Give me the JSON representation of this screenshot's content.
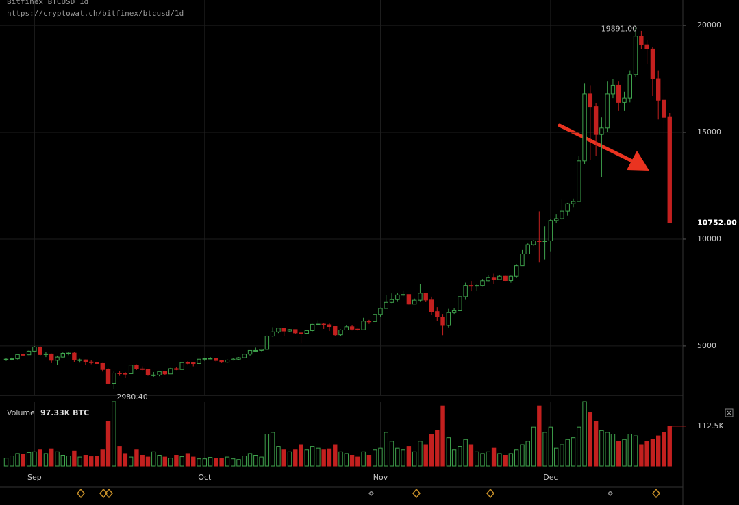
{
  "chart_data": [
    {
      "type": "candlestick",
      "title": "Bitfinex BTCUSD 1d",
      "subtitle": "https://cryptowat.ch/bitfinex/btcusd/1d",
      "categories": [
        null,
        null,
        null,
        null,
        null,
        "Sep",
        null,
        null,
        null,
        null,
        null,
        null,
        null,
        null,
        null,
        null,
        null,
        null,
        null,
        null,
        null,
        null,
        null,
        null,
        null,
        null,
        null,
        null,
        null,
        null,
        null,
        null,
        null,
        null,
        null,
        "Oct",
        null,
        null,
        null,
        null,
        null,
        null,
        null,
        null,
        null,
        null,
        null,
        null,
        null,
        null,
        null,
        null,
        null,
        null,
        null,
        null,
        null,
        null,
        null,
        null,
        null,
        null,
        null,
        null,
        null,
        null,
        "Nov",
        null,
        null,
        null,
        null,
        null,
        null,
        null,
        null,
        null,
        null,
        null,
        null,
        null,
        null,
        null,
        null,
        null,
        null,
        null,
        null,
        null,
        null,
        null,
        null,
        null,
        null,
        null,
        null,
        null,
        "Dec",
        null,
        null,
        null,
        null,
        null,
        null,
        null,
        null,
        null,
        null,
        null,
        null,
        null,
        null,
        null,
        null,
        null,
        null,
        null,
        null,
        null
      ],
      "open": [
        4350,
        4380,
        4400,
        4600,
        4590,
        4760,
        4950,
        4600,
        4630,
        4330,
        4480,
        4660,
        4670,
        4340,
        4350,
        4250,
        4230,
        4180,
        3900,
        3250,
        3730,
        3710,
        3700,
        4110,
        3930,
        3900,
        3640,
        3640,
        3800,
        3690,
        3940,
        3900,
        4220,
        4210,
        4180,
        4380,
        4410,
        4420,
        4320,
        4240,
        4340,
        4380,
        4450,
        4620,
        4790,
        4790,
        4840,
        5460,
        5660,
        5840,
        5700,
        5770,
        5610,
        5590,
        5720,
        6010,
        6020,
        5990,
        5910,
        5520,
        5750,
        5900,
        5790,
        5760,
        6160,
        6140,
        6480,
        6760,
        7040,
        7170,
        7390,
        7410,
        6960,
        7140,
        7470,
        7150,
        6610,
        6360,
        5960,
        6560,
        6650,
        7310,
        7830,
        7800,
        7830,
        8050,
        8210,
        8110,
        8260,
        8060,
        8260,
        8760,
        9310,
        9740,
        9920,
        9910,
        9920,
        10870,
        10960,
        11310,
        11660,
        11760,
        13660,
        16800,
        16200,
        14900,
        15200,
        16800,
        17200,
        16400,
        16600,
        17700,
        19500,
        19100,
        18900,
        17500,
        16500,
        15700
      ],
      "high": [
        4440,
        4460,
        4640,
        4650,
        4790,
        4990,
        4980,
        4720,
        4650,
        4550,
        4700,
        4720,
        4720,
        4400,
        4370,
        4340,
        4380,
        4200,
        3950,
        3800,
        3840,
        3780,
        4130,
        4140,
        4050,
        3920,
        3780,
        3830,
        3810,
        3980,
        4000,
        4240,
        4280,
        4230,
        4400,
        4420,
        4480,
        4450,
        4340,
        4370,
        4430,
        4480,
        4640,
        4800,
        4920,
        4870,
        5480,
        5880,
        5860,
        5860,
        5800,
        5780,
        5620,
        5730,
        6030,
        6200,
        6070,
        6050,
        5910,
        5780,
        5980,
        5990,
        5860,
        6320,
        6220,
        6500,
        6800,
        7400,
        7460,
        7470,
        7600,
        7420,
        7220,
        7890,
        7480,
        7310,
        6820,
        6500,
        6740,
        6760,
        7340,
        7960,
        8040,
        7880,
        8130,
        8300,
        8380,
        8300,
        8310,
        8290,
        8800,
        9490,
        9800,
        9960,
        11300,
        10600,
        10950,
        11150,
        11850,
        11700,
        11900,
        13880,
        17300,
        17200,
        16350,
        15700,
        17400,
        17500,
        17400,
        16900,
        17900,
        19891,
        19750,
        19300,
        19000,
        17900,
        17100,
        15900
      ],
      "low": [
        4300,
        4320,
        4370,
        4520,
        4570,
        4740,
        4520,
        4480,
        4200,
        4100,
        4460,
        4570,
        4250,
        4220,
        4100,
        4150,
        4100,
        3800,
        3200,
        2980.4,
        3600,
        3520,
        3690,
        3880,
        3860,
        3600,
        3560,
        3580,
        3640,
        3680,
        3870,
        3890,
        4150,
        4050,
        4170,
        4300,
        4380,
        4260,
        4200,
        4210,
        4320,
        4350,
        4440,
        4550,
        4730,
        4760,
        4840,
        5420,
        5600,
        5450,
        5650,
        5560,
        5140,
        5570,
        5690,
        5950,
        5800,
        5700,
        5470,
        5470,
        5740,
        5730,
        5710,
        5740,
        6030,
        6120,
        6380,
        6760,
        7010,
        7060,
        7320,
        6940,
        6960,
        7060,
        7050,
        6450,
        6180,
        5500,
        5870,
        6500,
        6650,
        7160,
        7560,
        7570,
        7780,
        8020,
        7900,
        8100,
        8030,
        7960,
        8210,
        8760,
        9300,
        9690,
        8900,
        9050,
        9400,
        10750,
        10900,
        11100,
        11500,
        11760,
        13500,
        13700,
        13900,
        12900,
        15000,
        16600,
        16000,
        16000,
        16400,
        17600,
        18900,
        18200,
        16700,
        15600,
        14800,
        10752
      ],
      "close": [
        4380,
        4400,
        4600,
        4590,
        4760,
        4950,
        4600,
        4630,
        4330,
        4480,
        4660,
        4670,
        4340,
        4350,
        4250,
        4230,
        4180,
        3900,
        3250,
        3730,
        3710,
        3700,
        4110,
        3930,
        3900,
        3640,
        3640,
        3800,
        3690,
        3940,
        3900,
        4220,
        4210,
        4180,
        4380,
        4410,
        4420,
        4320,
        4240,
        4340,
        4380,
        4450,
        4620,
        4790,
        4790,
        4840,
        5460,
        5660,
        5840,
        5700,
        5770,
        5610,
        5590,
        5720,
        6010,
        6020,
        5990,
        5910,
        5520,
        5750,
        5900,
        5790,
        5760,
        6160,
        6140,
        6480,
        6760,
        7040,
        7170,
        7390,
        7410,
        6960,
        7140,
        7470,
        7150,
        6610,
        6360,
        5960,
        6560,
        6650,
        7310,
        7830,
        7800,
        7830,
        8050,
        8210,
        8110,
        8260,
        8060,
        8260,
        8760,
        9310,
        9740,
        9920,
        9910,
        9920,
        10870,
        10960,
        11310,
        11660,
        11760,
        13660,
        16800,
        16200,
        14900,
        15200,
        16800,
        17200,
        16400,
        16600,
        17700,
        19500,
        19100,
        18900,
        17500,
        16500,
        15700,
        10752
      ],
      "up_color": "#3fa34d",
      "down_color": "#c3201f",
      "ylim": [
        2720,
        21190
      ],
      "yticks": [
        5000,
        10000,
        15000,
        20000
      ],
      "grid": true,
      "annotations": [
        {
          "label": "19891.00",
          "value": 19891
        },
        {
          "label": "2980.40",
          "value": 2980.4
        },
        {
          "label": "10752.00",
          "value": 10752
        }
      ]
    },
    {
      "type": "bar",
      "title": "Volume",
      "subtitle": "97.33K BTC",
      "values": [
        22000,
        28000,
        35000,
        32000,
        38000,
        40000,
        45000,
        35000,
        48000,
        40000,
        30000,
        28000,
        42000,
        25000,
        30000,
        26000,
        28000,
        45000,
        125000,
        182000,
        55000,
        35000,
        25000,
        45000,
        30000,
        25000,
        40000,
        30000,
        25000,
        22000,
        30000,
        26000,
        35000,
        25000,
        20000,
        20000,
        24000,
        22000,
        22000,
        25000,
        20000,
        18000,
        28000,
        35000,
        30000,
        25000,
        90000,
        95000,
        55000,
        45000,
        40000,
        45000,
        60000,
        45000,
        55000,
        50000,
        45000,
        48000,
        60000,
        40000,
        35000,
        30000,
        25000,
        40000,
        30000,
        45000,
        50000,
        95000,
        70000,
        50000,
        45000,
        55000,
        40000,
        70000,
        60000,
        90000,
        100000,
        170000,
        80000,
        45000,
        55000,
        75000,
        60000,
        40000,
        35000,
        40000,
        50000,
        35000,
        30000,
        35000,
        45000,
        60000,
        70000,
        110000,
        170000,
        95000,
        110000,
        50000,
        60000,
        75000,
        80000,
        110000,
        182000,
        150000,
        125000,
        100000,
        95000,
        90000,
        70000,
        75000,
        90000,
        85000,
        60000,
        70000,
        75000,
        85000,
        95000,
        112500
      ],
      "ylim": [
        0,
        182000
      ],
      "yticks": [
        {
          "value": 112500,
          "label": "112.5K"
        }
      ]
    }
  ]
}
